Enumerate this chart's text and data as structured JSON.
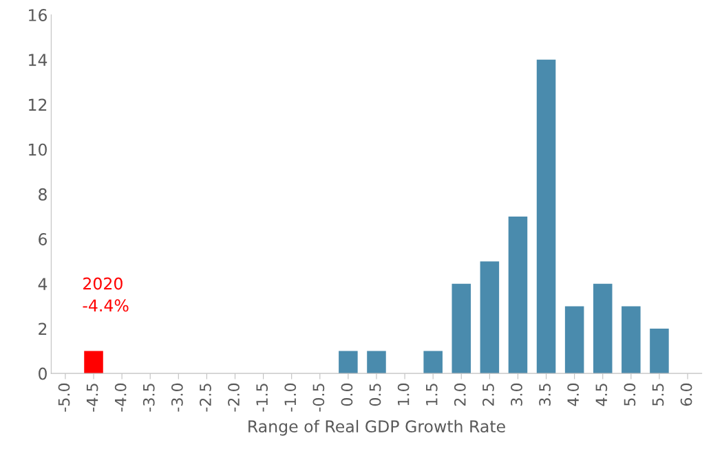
{
  "chart_data": {
    "type": "bar",
    "xlabel": "Range of Real GDP Growth Rate",
    "categories": [
      "-5.0",
      "-4.5",
      "-4.0",
      "-3.5",
      "-3.0",
      "-2.5",
      "-2.0",
      "-1.5",
      "-1.0",
      "-0.5",
      "0.0",
      "0.5",
      "1.0",
      "1.5",
      "2.0",
      "2.5",
      "3.0",
      "3.5",
      "4.0",
      "4.5",
      "5.0",
      "5.5",
      "6.0"
    ],
    "values": [
      0,
      1,
      0,
      0,
      0,
      0,
      0,
      0,
      0,
      0,
      1,
      1,
      0,
      1,
      4,
      5,
      7,
      14,
      3,
      4,
      3,
      2,
      0
    ],
    "colors": [
      "#4a8bad",
      "#ff0000",
      "#4a8bad",
      "#4a8bad",
      "#4a8bad",
      "#4a8bad",
      "#4a8bad",
      "#4a8bad",
      "#4a8bad",
      "#4a8bad",
      "#4a8bad",
      "#4a8bad",
      "#4a8bad",
      "#4a8bad",
      "#4a8bad",
      "#4a8bad",
      "#4a8bad",
      "#4a8bad",
      "#4a8bad",
      "#4a8bad",
      "#4a8bad",
      "#4a8bad",
      "#4a8bad"
    ],
    "annotations": [
      {
        "text": "2020\n-4.4%",
        "x": "-4.5",
        "y": 1
      }
    ],
    "ylim": [
      0,
      16
    ],
    "yticks": [
      0,
      2,
      4,
      6,
      8,
      10,
      12,
      14,
      16
    ],
    "grid": false,
    "legend": false
  }
}
